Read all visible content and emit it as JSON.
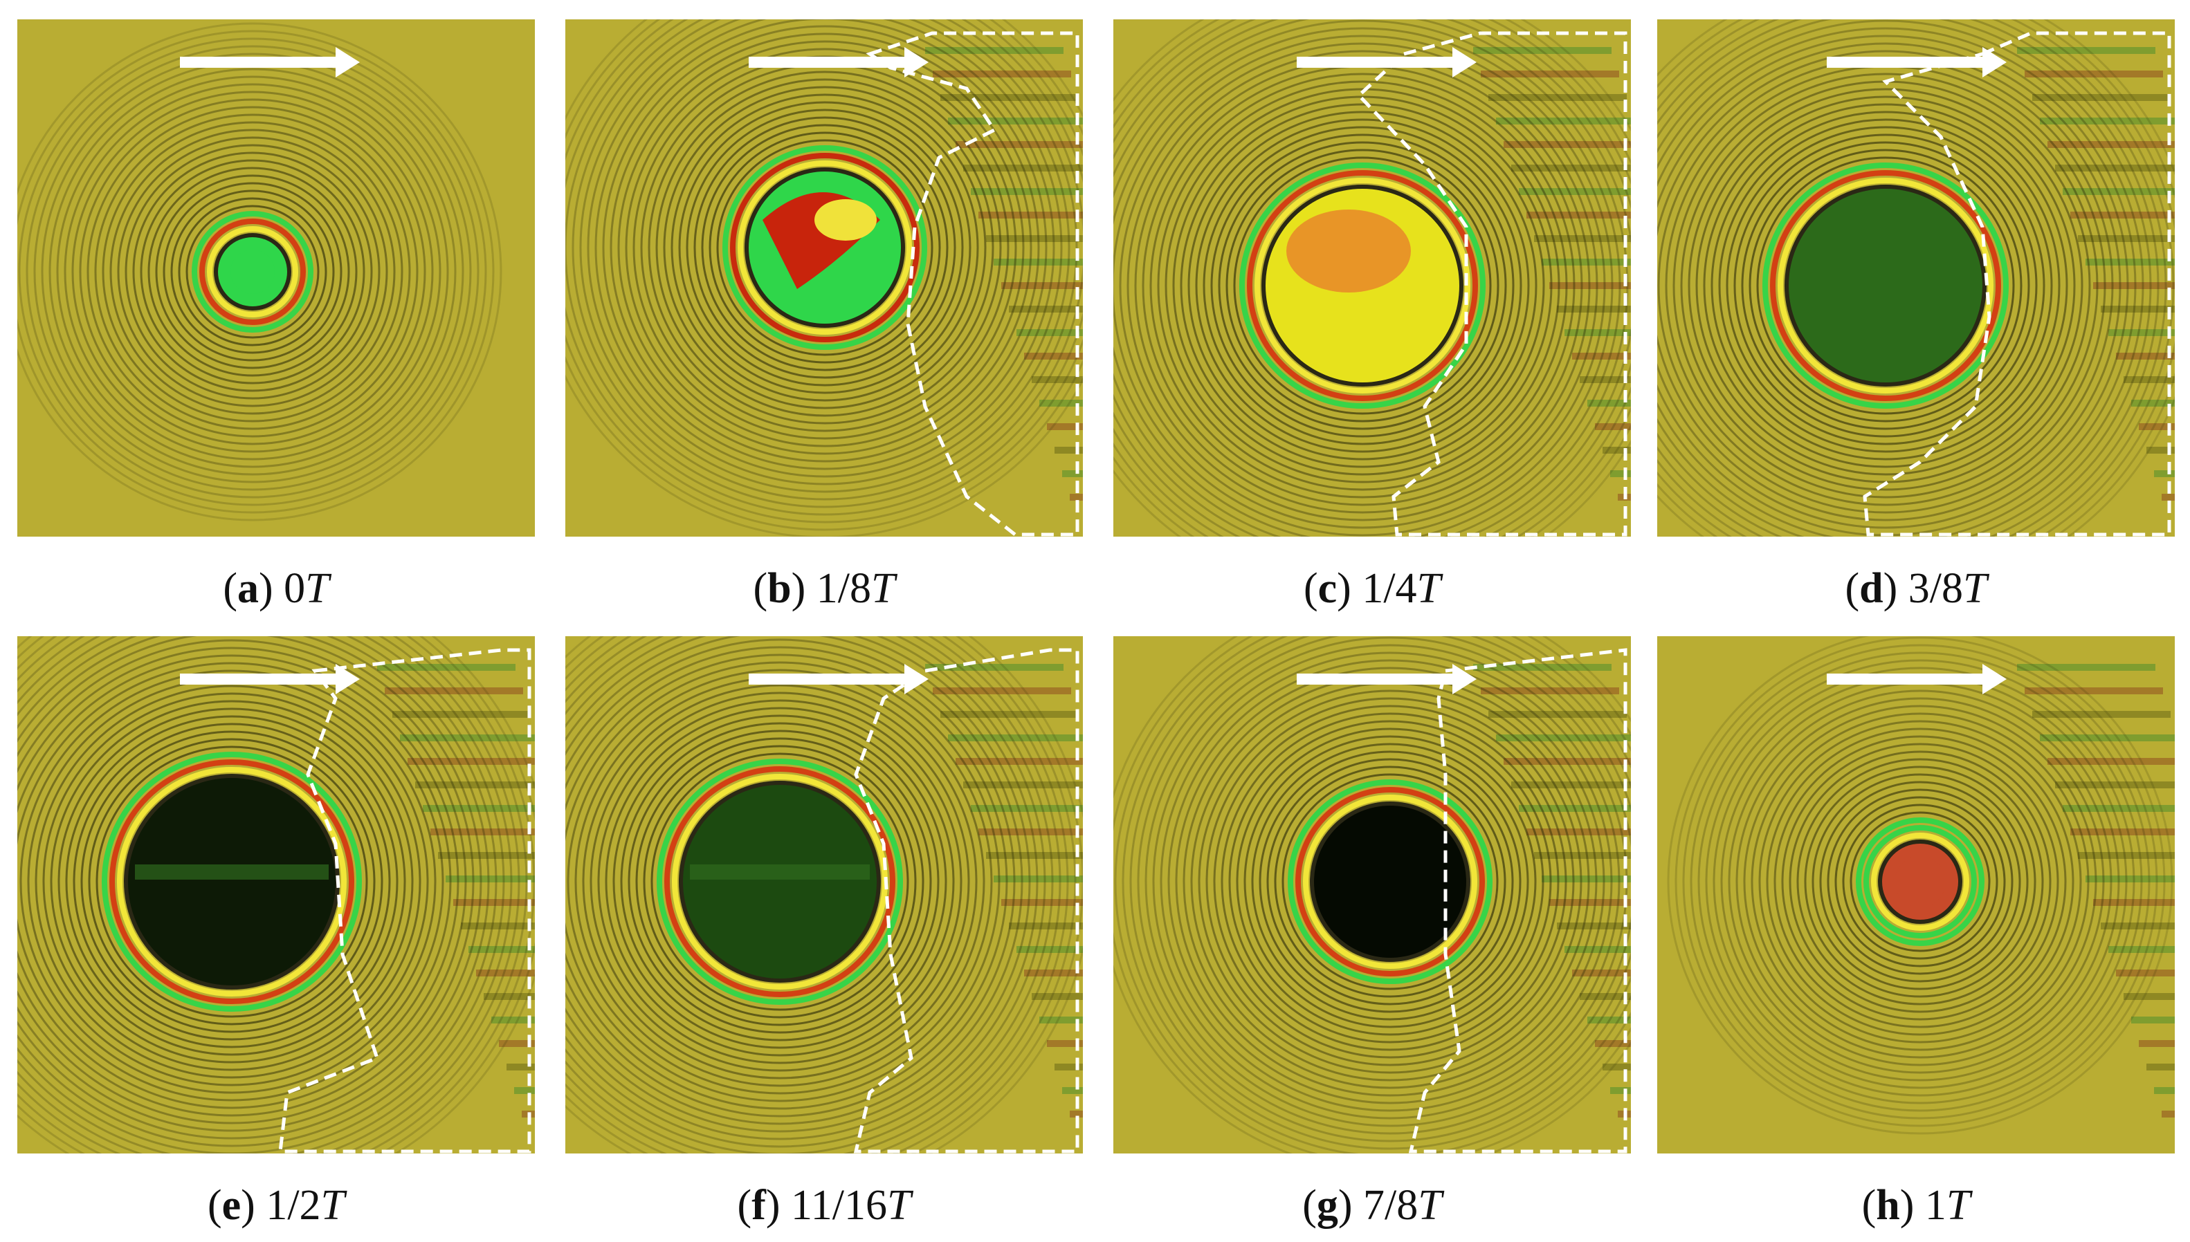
{
  "panels": [
    {
      "letter": "a",
      "value": "0",
      "unit": "T",
      "state": "expanding",
      "core_color": "#2fd64a",
      "outer_ring": "#d43a12",
      "boundary": false
    },
    {
      "letter": "b",
      "value": "1/8",
      "unit": "T",
      "state": "swirl",
      "core_color": "#2fd64a",
      "outer_ring": "#c8240c",
      "boundary": true
    },
    {
      "letter": "c",
      "value": "1/4",
      "unit": "T",
      "state": "large-bright",
      "core_color": "#e7e21c",
      "outer_ring": "#d43a12",
      "boundary": true
    },
    {
      "letter": "d",
      "value": "3/8",
      "unit": "T",
      "state": "large-green",
      "core_color": "#2c6a1a",
      "outer_ring": "#d43a12",
      "boundary": true
    },
    {
      "letter": "e",
      "value": "1/2",
      "unit": "T",
      "state": "dark",
      "core_color": "#0d1a06",
      "outer_ring": "#d43a12",
      "boundary": true
    },
    {
      "letter": "f",
      "value": "11/16",
      "unit": "T",
      "state": "dark-green",
      "core_color": "#1c4a10",
      "outer_ring": "#d43a12",
      "boundary": true
    },
    {
      "letter": "g",
      "value": "7/8",
      "unit": "T",
      "state": "shrinking",
      "core_color": "#050a02",
      "outer_ring": "#d43a12",
      "boundary": true
    },
    {
      "letter": "h",
      "value": "1",
      "unit": "T",
      "state": "collapsed",
      "core_color": "#c84a2a",
      "outer_ring": "#2fd64a",
      "boundary": false
    }
  ],
  "colors": {
    "background": "#b9ad33",
    "fringe_dark": "#2a2a08",
    "arrow": "#ffffff",
    "boundary_line": "#ffffff"
  },
  "icons": {
    "flow_arrow": "right-arrow-icon"
  }
}
